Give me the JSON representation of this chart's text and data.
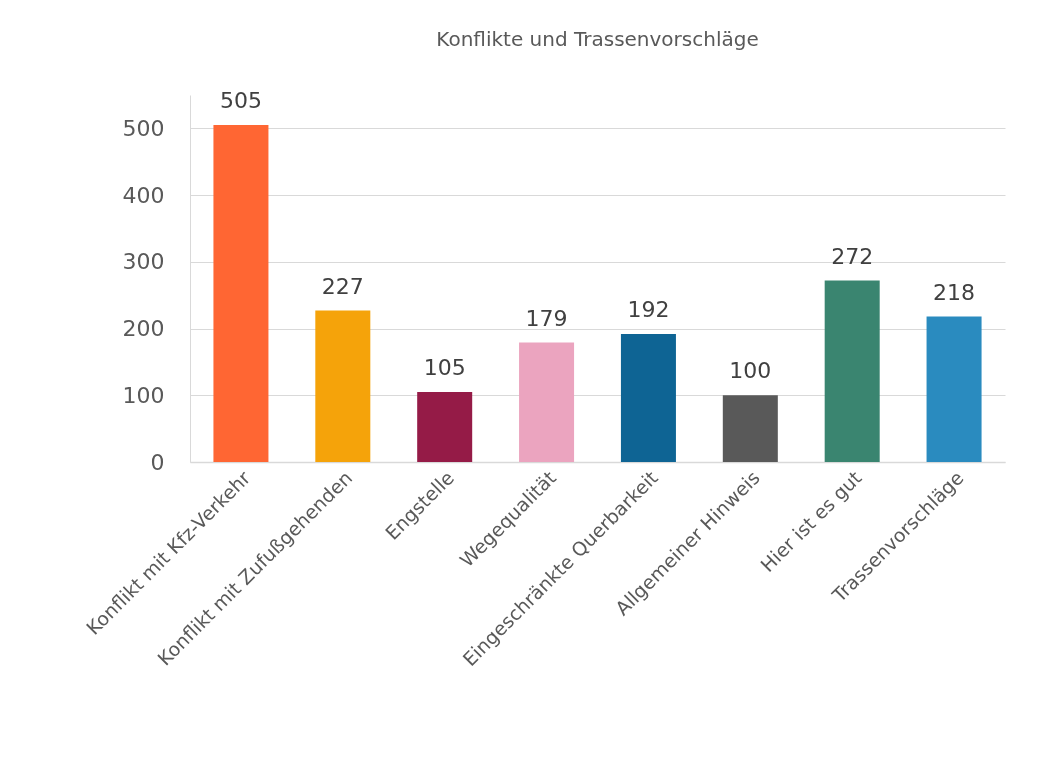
{
  "chart_data": {
    "type": "bar",
    "title": "Konflikte und Trassenvorschläge",
    "categories": [
      "Konflikt mit Kfz-Verkehr",
      "Konflikt mit Zufußgehenden",
      "Engstelle",
      "Wegequalität",
      "Eingeschränkte Querbarkeit",
      "Allgemeiner Hinweis",
      "Hier ist es gut",
      "Trassenvorschläge"
    ],
    "values": [
      505,
      227,
      105,
      179,
      192,
      100,
      272,
      218
    ],
    "colors": [
      "#ff6633",
      "#f5a30a",
      "#951b47",
      "#eba4bf",
      "#0e6494",
      "#595959",
      "#3a8570",
      "#2a8bbf"
    ],
    "ylim": [
      0,
      550
    ],
    "yticks": [
      0,
      100,
      200,
      300,
      400,
      500
    ],
    "grid": "y",
    "data_labels": true,
    "legend": false
  }
}
